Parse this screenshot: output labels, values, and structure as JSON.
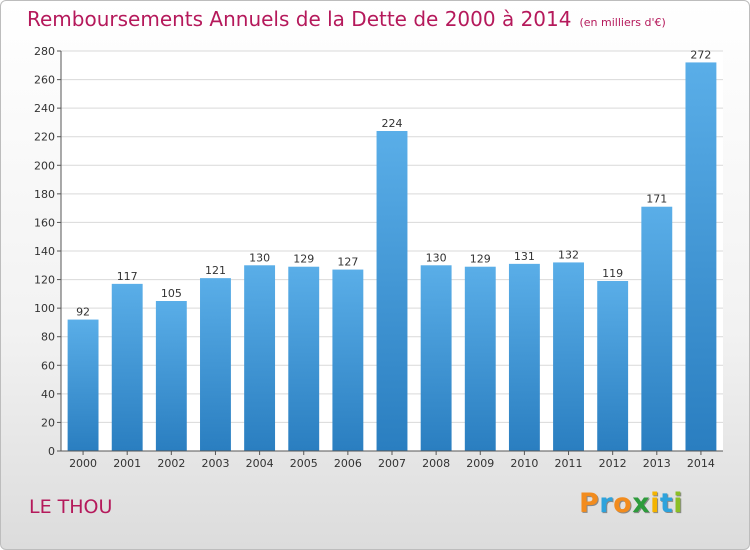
{
  "title": "Remboursements Annuels de la Dette de 2000 à 2014",
  "title_unit": "(en milliers d'€)",
  "commune": "LE THOU",
  "logo": [
    "P",
    "r",
    "o",
    "x",
    "i",
    "t",
    "i"
  ],
  "colors": {
    "title": "#b5195b",
    "bar_top": "#5aaee8",
    "bar_bottom": "#2a7ec0",
    "logo": [
      "#f28c1e",
      "#2ea3dc",
      "#f28c1e",
      "#2e9b3c",
      "#f4b400",
      "#2ea3dc",
      "#8cbf26"
    ]
  },
  "chart_data": {
    "type": "bar",
    "categories": [
      "2000",
      "2001",
      "2002",
      "2003",
      "2004",
      "2005",
      "2006",
      "2007",
      "2008",
      "2009",
      "2010",
      "2011",
      "2012",
      "2013",
      "2014"
    ],
    "values": [
      92,
      117,
      105,
      121,
      130,
      129,
      127,
      224,
      130,
      129,
      131,
      132,
      119,
      171,
      272
    ],
    "ylim": [
      0,
      280
    ],
    "yticks": [
      0,
      20,
      40,
      60,
      80,
      100,
      120,
      140,
      160,
      180,
      200,
      220,
      240,
      260,
      280
    ],
    "grid": true
  }
}
